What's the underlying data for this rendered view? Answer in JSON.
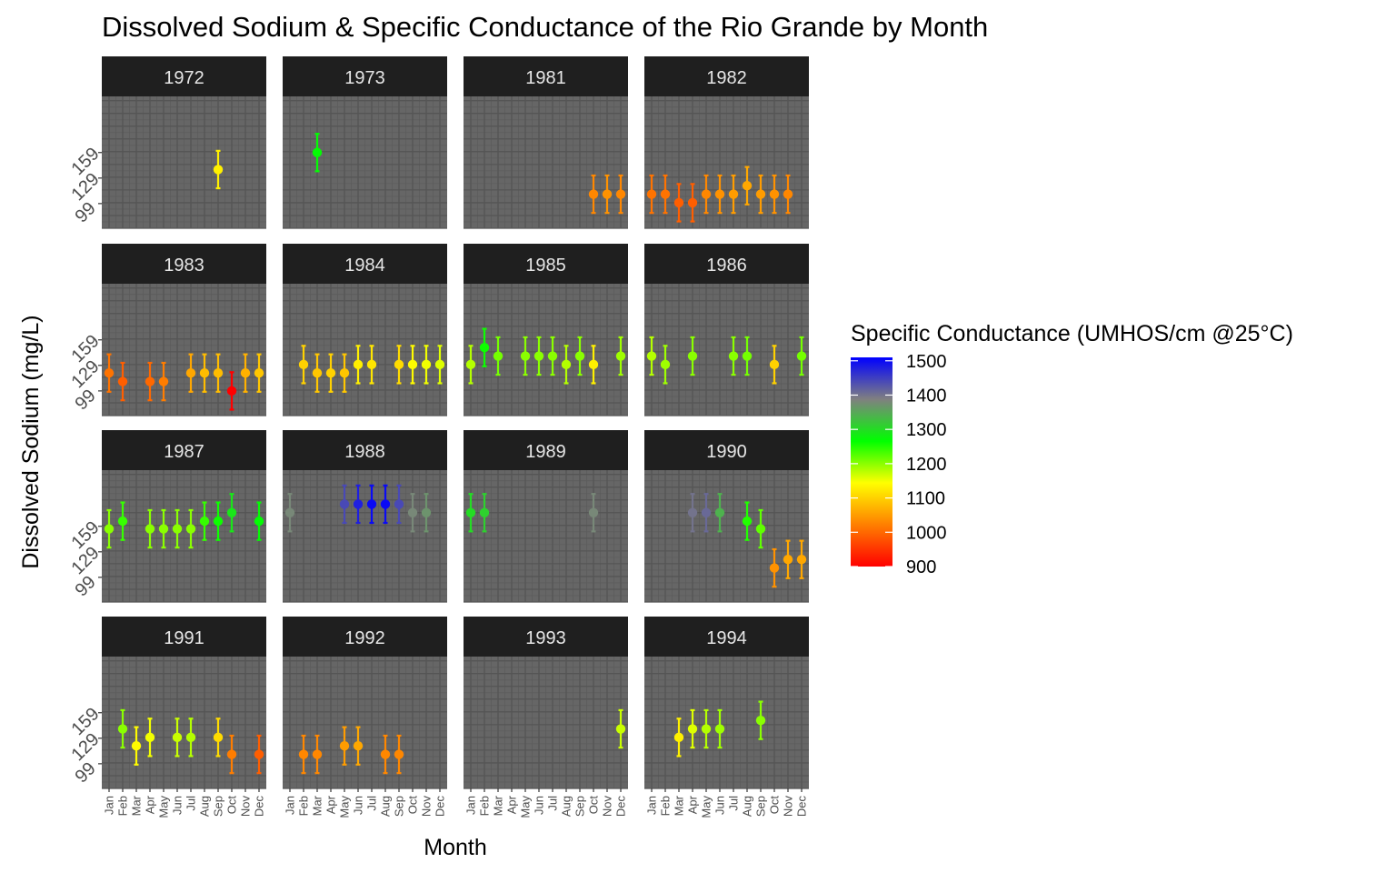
{
  "chart_data": {
    "type": "scatter",
    "title": "Dissolved Sodium & Specific Conductance of the Rio Grande by Month",
    "xlabel": "Month",
    "ylabel": "Dissolved Sodium (mg/L)",
    "months": [
      "Jan",
      "Feb",
      "Mar",
      "Apr",
      "May",
      "Jun",
      "Jul",
      "Aug",
      "Sep",
      "Oct",
      "Nov",
      "Dec"
    ],
    "y_ticks": [
      99,
      129,
      159
    ],
    "ylim": [
      70,
      225
    ],
    "error_half_width": 22,
    "legend": {
      "title": "Specific Conductance (UMHOS/cm @25°C)",
      "ticks": [
        1500,
        1400,
        1300,
        1200,
        1100,
        1000,
        900
      ],
      "range": [
        900,
        1510
      ],
      "colors": [
        "#ff0000",
        "#ff7f00",
        "#ffff00",
        "#00ff00",
        "#808080",
        "#0000ff"
      ],
      "placement": "right"
    },
    "panels": [
      {
        "year": "1972",
        "points": [
          {
            "month": 9,
            "value": 139,
            "cond": 1130
          }
        ]
      },
      {
        "year": "1973",
        "points": [
          {
            "month": 3,
            "value": 159,
            "cond": 1270
          }
        ]
      },
      {
        "year": "1981",
        "points": [
          {
            "month": 10,
            "value": 110,
            "cond": 1030
          },
          {
            "month": 11,
            "value": 110,
            "cond": 1040
          },
          {
            "month": 12,
            "value": 110,
            "cond": 1030
          }
        ]
      },
      {
        "year": "1982",
        "points": [
          {
            "month": 1,
            "value": 110,
            "cond": 1010
          },
          {
            "month": 2,
            "value": 110,
            "cond": 1010
          },
          {
            "month": 3,
            "value": 100,
            "cond": 990
          },
          {
            "month": 4,
            "value": 100,
            "cond": 990
          },
          {
            "month": 5,
            "value": 110,
            "cond": 1030
          },
          {
            "month": 6,
            "value": 110,
            "cond": 1040
          },
          {
            "month": 7,
            "value": 110,
            "cond": 1050
          },
          {
            "month": 8,
            "value": 120,
            "cond": 1060
          },
          {
            "month": 9,
            "value": 110,
            "cond": 1050
          },
          {
            "month": 10,
            "value": 110,
            "cond": 1040
          },
          {
            "month": 11,
            "value": 110,
            "cond": 1030
          }
        ]
      },
      {
        "year": "1983",
        "points": [
          {
            "month": 1,
            "value": 120,
            "cond": 1010
          },
          {
            "month": 2,
            "value": 110,
            "cond": 990
          },
          {
            "month": 4,
            "value": 110,
            "cond": 1000
          },
          {
            "month": 5,
            "value": 110,
            "cond": 1020
          },
          {
            "month": 7,
            "value": 120,
            "cond": 1060
          },
          {
            "month": 8,
            "value": 120,
            "cond": 1080
          },
          {
            "month": 9,
            "value": 120,
            "cond": 1080
          },
          {
            "month": 10,
            "value": 99,
            "cond": 900
          },
          {
            "month": 11,
            "value": 120,
            "cond": 1070
          },
          {
            "month": 12,
            "value": 120,
            "cond": 1090
          }
        ]
      },
      {
        "year": "1984",
        "points": [
          {
            "month": 2,
            "value": 130,
            "cond": 1100
          },
          {
            "month": 3,
            "value": 120,
            "cond": 1090
          },
          {
            "month": 4,
            "value": 120,
            "cond": 1100
          },
          {
            "month": 5,
            "value": 120,
            "cond": 1090
          },
          {
            "month": 6,
            "value": 130,
            "cond": 1130
          },
          {
            "month": 7,
            "value": 130,
            "cond": 1120
          },
          {
            "month": 9,
            "value": 130,
            "cond": 1110
          },
          {
            "month": 10,
            "value": 130,
            "cond": 1140
          },
          {
            "month": 11,
            "value": 130,
            "cond": 1150
          },
          {
            "month": 12,
            "value": 130,
            "cond": 1160
          }
        ]
      },
      {
        "year": "1985",
        "points": [
          {
            "month": 1,
            "value": 130,
            "cond": 1180
          },
          {
            "month": 2,
            "value": 150,
            "cond": 1260
          },
          {
            "month": 3,
            "value": 140,
            "cond": 1210
          },
          {
            "month": 5,
            "value": 140,
            "cond": 1200
          },
          {
            "month": 6,
            "value": 140,
            "cond": 1200
          },
          {
            "month": 7,
            "value": 140,
            "cond": 1200
          },
          {
            "month": 8,
            "value": 130,
            "cond": 1180
          },
          {
            "month": 9,
            "value": 140,
            "cond": 1200
          },
          {
            "month": 10,
            "value": 130,
            "cond": 1130
          },
          {
            "month": 12,
            "value": 140,
            "cond": 1190
          }
        ]
      },
      {
        "year": "1986",
        "points": [
          {
            "month": 1,
            "value": 140,
            "cond": 1180
          },
          {
            "month": 2,
            "value": 130,
            "cond": 1190
          },
          {
            "month": 4,
            "value": 140,
            "cond": 1200
          },
          {
            "month": 7,
            "value": 140,
            "cond": 1200
          },
          {
            "month": 8,
            "value": 140,
            "cond": 1210
          },
          {
            "month": 10,
            "value": 130,
            "cond": 1100
          },
          {
            "month": 12,
            "value": 140,
            "cond": 1210
          }
        ]
      },
      {
        "year": "1987",
        "points": [
          {
            "month": 1,
            "value": 156,
            "cond": 1200
          },
          {
            "month": 2,
            "value": 165,
            "cond": 1240
          },
          {
            "month": 4,
            "value": 156,
            "cond": 1200
          },
          {
            "month": 5,
            "value": 156,
            "cond": 1200
          },
          {
            "month": 6,
            "value": 156,
            "cond": 1200
          },
          {
            "month": 7,
            "value": 156,
            "cond": 1200
          },
          {
            "month": 8,
            "value": 165,
            "cond": 1240
          },
          {
            "month": 9,
            "value": 165,
            "cond": 1260
          },
          {
            "month": 10,
            "value": 175,
            "cond": 1290
          },
          {
            "month": 12,
            "value": 165,
            "cond": 1270
          }
        ]
      },
      {
        "year": "1988",
        "points": [
          {
            "month": 1,
            "value": 175,
            "cond": 1380
          },
          {
            "month": 5,
            "value": 185,
            "cond": 1440
          },
          {
            "month": 6,
            "value": 185,
            "cond": 1480
          },
          {
            "month": 7,
            "value": 185,
            "cond": 1500
          },
          {
            "month": 8,
            "value": 185,
            "cond": 1500
          },
          {
            "month": 9,
            "value": 185,
            "cond": 1440
          },
          {
            "month": 10,
            "value": 175,
            "cond": 1380
          },
          {
            "month": 11,
            "value": 175,
            "cond": 1370
          }
        ]
      },
      {
        "year": "1989",
        "points": [
          {
            "month": 1,
            "value": 175,
            "cond": 1300
          },
          {
            "month": 2,
            "value": 175,
            "cond": 1310
          },
          {
            "month": 10,
            "value": 175,
            "cond": 1380
          }
        ]
      },
      {
        "year": "1990",
        "points": [
          {
            "month": 4,
            "value": 175,
            "cond": 1400
          },
          {
            "month": 5,
            "value": 175,
            "cond": 1410
          },
          {
            "month": 6,
            "value": 175,
            "cond": 1340
          },
          {
            "month": 8,
            "value": 165,
            "cond": 1250
          },
          {
            "month": 9,
            "value": 156,
            "cond": 1220
          },
          {
            "month": 10,
            "value": 110,
            "cond": 1040
          },
          {
            "month": 11,
            "value": 120,
            "cond": 1060
          },
          {
            "month": 12,
            "value": 120,
            "cond": 1060
          }
        ]
      },
      {
        "year": "1991",
        "points": [
          {
            "month": 2,
            "value": 140,
            "cond": 1200
          },
          {
            "month": 3,
            "value": 120,
            "cond": 1140
          },
          {
            "month": 4,
            "value": 130,
            "cond": 1150
          },
          {
            "month": 6,
            "value": 130,
            "cond": 1170
          },
          {
            "month": 7,
            "value": 130,
            "cond": 1180
          },
          {
            "month": 9,
            "value": 130,
            "cond": 1110
          },
          {
            "month": 10,
            "value": 110,
            "cond": 1020
          },
          {
            "month": 12,
            "value": 110,
            "cond": 990
          }
        ]
      },
      {
        "year": "1992",
        "points": [
          {
            "month": 2,
            "value": 110,
            "cond": 1030
          },
          {
            "month": 3,
            "value": 110,
            "cond": 1030
          },
          {
            "month": 5,
            "value": 120,
            "cond": 1050
          },
          {
            "month": 6,
            "value": 120,
            "cond": 1060
          },
          {
            "month": 8,
            "value": 110,
            "cond": 1030
          },
          {
            "month": 9,
            "value": 110,
            "cond": 1030
          }
        ]
      },
      {
        "year": "1993",
        "points": [
          {
            "month": 12,
            "value": 140,
            "cond": 1170
          }
        ]
      },
      {
        "year": "1994",
        "points": [
          {
            "month": 3,
            "value": 130,
            "cond": 1130
          },
          {
            "month": 4,
            "value": 140,
            "cond": 1160
          },
          {
            "month": 5,
            "value": 140,
            "cond": 1180
          },
          {
            "month": 6,
            "value": 140,
            "cond": 1190
          },
          {
            "month": 9,
            "value": 150,
            "cond": 1200
          }
        ]
      }
    ]
  }
}
